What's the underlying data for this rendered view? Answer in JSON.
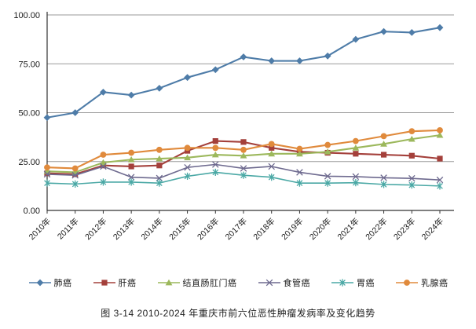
{
  "caption": "图 3-14   2010-2024 年重庆市前六位恶性肿瘤发病率及变化趋势",
  "colors": {
    "axis": "#333333",
    "gridline": "#9a9a9a",
    "text": "#1a1a1a"
  },
  "chart_data": {
    "type": "line",
    "title": "图 3-14 2010-2024 年重庆市前六位恶性肿瘤发病率及变化趋势",
    "xlabel": "",
    "ylabel": "",
    "ylim": [
      0,
      100
    ],
    "yticks": [
      {
        "value": 0,
        "label": "0.00"
      },
      {
        "value": 25,
        "label": "25.00"
      },
      {
        "value": 50,
        "label": "50.00"
      },
      {
        "value": 75,
        "label": "75.00"
      },
      {
        "value": 100,
        "label": "100.00"
      }
    ],
    "grid": true,
    "legend_position": "bottom",
    "categories": [
      "2010年",
      "2011年",
      "2012年",
      "2013年",
      "2014年",
      "2015年",
      "2016年",
      "2017年",
      "2018年",
      "2019年",
      "2020年",
      "2021年",
      "2022年",
      "2023年",
      "2024年"
    ],
    "series": [
      {
        "name": "肺癌",
        "marker": "diamond",
        "color": "#4e7ca8",
        "values": [
          47.5,
          50,
          60.5,
          59,
          62.5,
          68,
          72,
          78.5,
          76.5,
          76.5,
          79,
          87.5,
          91.5,
          91,
          93.5
        ]
      },
      {
        "name": "肝癌",
        "marker": "square",
        "color": "#a4403b",
        "values": [
          19,
          18.5,
          23,
          22.5,
          23,
          30.5,
          35.5,
          35,
          32,
          30,
          29.5,
          29,
          28.5,
          28,
          26.5
        ]
      },
      {
        "name": "结直肠肛门癌",
        "marker": "triangle",
        "color": "#9cb85c",
        "values": [
          20,
          19.5,
          24.5,
          26,
          26.5,
          27,
          28.5,
          28,
          29,
          29,
          30,
          32,
          34,
          36.5,
          38.5
        ]
      },
      {
        "name": "食管癌",
        "marker": "x",
        "color": "#6e6a8f",
        "values": [
          18.5,
          18,
          22.5,
          17,
          16.5,
          22,
          23.5,
          21.5,
          22.5,
          19.5,
          17.5,
          17.3,
          16.7,
          16.4,
          15.6
        ]
      },
      {
        "name": "胃癌",
        "marker": "star",
        "color": "#4aa8a5",
        "values": [
          14,
          13.5,
          14.5,
          14.5,
          14,
          17.5,
          19.5,
          18,
          17,
          14,
          14,
          14.2,
          13.3,
          13,
          12.5
        ]
      },
      {
        "name": "乳腺癌",
        "marker": "circle",
        "color": "#e08a3c",
        "values": [
          22,
          21.5,
          28.5,
          29.5,
          31,
          32,
          32,
          31,
          34,
          31.5,
          33.5,
          35.5,
          38,
          40.5,
          41
        ]
      }
    ]
  }
}
